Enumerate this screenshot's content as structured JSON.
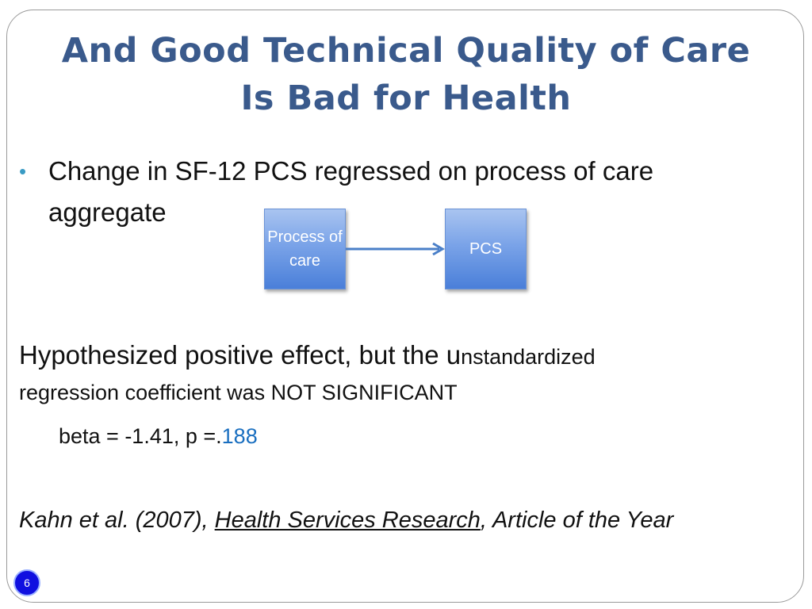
{
  "slide": {
    "title_line1": "And Good Technical Quality of Care",
    "title_line2": "Is Bad for Health",
    "bullet": "Change in SF-12 PCS regressed on process of care aggregate",
    "diagram": {
      "box1_label": "Process of care",
      "box2_label": "PCS"
    },
    "hypothesis_part1": "Hypothesized positive effect, but the u",
    "hypothesis_part2": "nstandardized",
    "hypothesis_line2": "regression coefficient was NOT SIGNIFICANT",
    "stats_prefix": "beta = -1.41, p =.",
    "stats_pvalue": "188",
    "citation_authors": "Kahn et al. (2007), ",
    "citation_journal": "Health Services Research",
    "citation_suffix": ", Article of the Year",
    "page_number": "6"
  },
  "colors": {
    "title": "#3a5a8c",
    "bullet_dot": "#3a9bc4",
    "box_fill": "#7aa3e8",
    "arrow": "#4a7fc8",
    "pvalue": "#1a6fc0",
    "page_badge": "#1010e0"
  }
}
